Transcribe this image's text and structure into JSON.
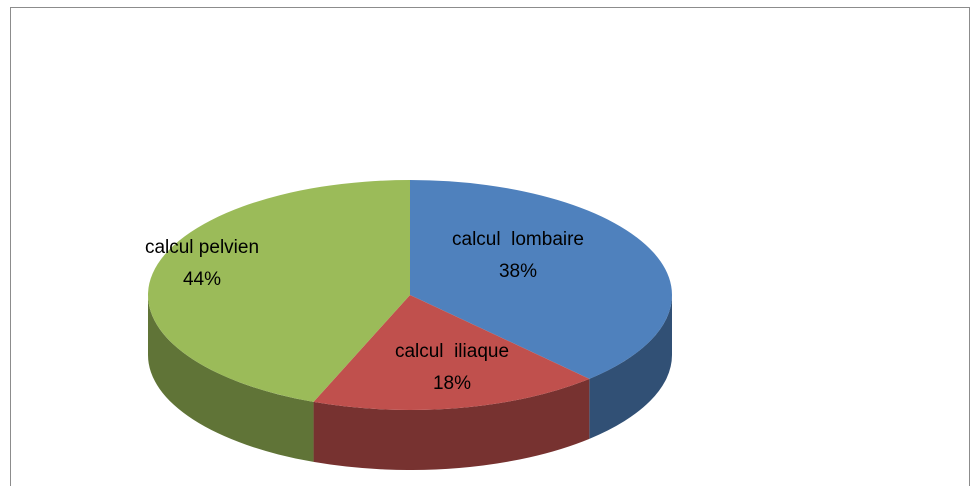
{
  "chart_data": {
    "type": "pie3d",
    "categories": [
      "calcul  lombaire",
      "calcul  iliaque",
      "calcul pelvien"
    ],
    "values": [
      38,
      18,
      44
    ],
    "value_labels": [
      "38%",
      "18%",
      "44%"
    ],
    "colors": [
      "#4f81bd",
      "#c0504d",
      "#9bbb59"
    ]
  }
}
